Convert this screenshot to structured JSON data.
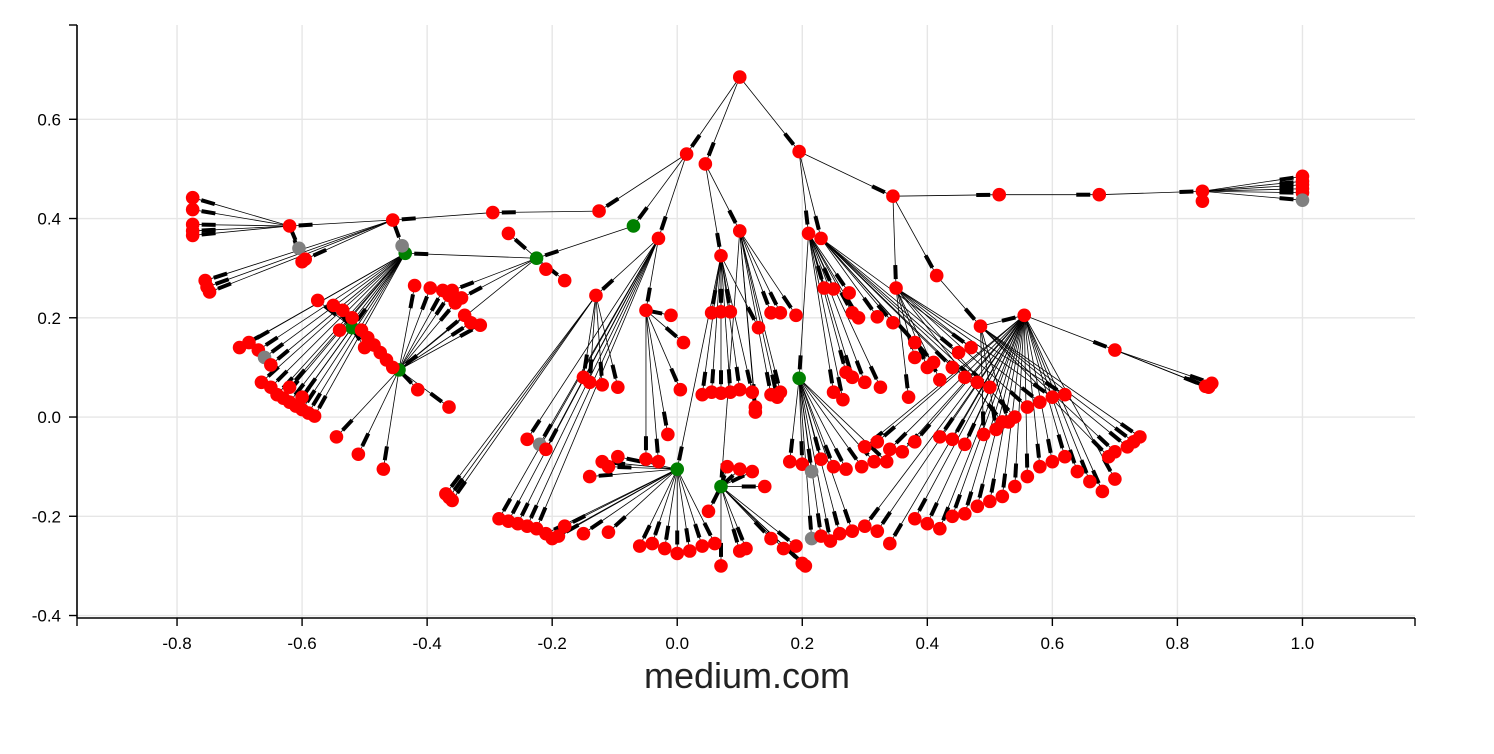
{
  "chart_data": {
    "type": "scatter",
    "subtype": "network-graph",
    "title": "",
    "xlabel": "medium.com",
    "ylabel": "",
    "xlim": [
      -0.96,
      1.18
    ],
    "ylim": [
      -0.405,
      0.79
    ],
    "xticks": [
      -0.8,
      -0.6,
      -0.4,
      -0.2,
      0.0,
      0.2,
      0.4,
      0.6,
      0.8,
      1.0
    ],
    "xtick_labels": [
      "-0.8",
      "-0.6",
      "-0.4",
      "-0.2",
      "0.0",
      "0.2",
      "0.4",
      "0.6",
      "0.8",
      "1.0"
    ],
    "yticks": [
      -0.4,
      -0.2,
      0.0,
      0.2,
      0.4,
      0.6
    ],
    "ytick_labels": [
      "-0.4",
      "-0.2",
      "0.0",
      "0.2",
      "0.4",
      "0.6"
    ],
    "grid": true,
    "node_colors": {
      "red": "#ff0000",
      "green": "#008000",
      "gray": "#808080"
    },
    "hubs": [
      {
        "id": "root",
        "x": 0.1,
        "y": 0.685,
        "color": "red",
        "parent": null
      },
      {
        "id": "h1",
        "x": 0.015,
        "y": 0.53,
        "color": "red",
        "parent": "root"
      },
      {
        "id": "h2",
        "x": 0.045,
        "y": 0.51,
        "color": "red",
        "parent": "root"
      },
      {
        "id": "h3",
        "x": 0.195,
        "y": 0.535,
        "color": "red",
        "parent": "root"
      },
      {
        "id": "h4",
        "x": 0.345,
        "y": 0.445,
        "color": "red",
        "parent": "h3"
      },
      {
        "id": "h5",
        "x": 0.515,
        "y": 0.448,
        "color": "red",
        "parent": "h4"
      },
      {
        "id": "h6",
        "x": 0.675,
        "y": 0.448,
        "color": "red",
        "parent": "h5"
      },
      {
        "id": "h7",
        "x": 0.84,
        "y": 0.455,
        "color": "red",
        "parent": "h6"
      },
      {
        "id": "h8",
        "x": -0.125,
        "y": 0.415,
        "color": "red",
        "parent": "h1"
      },
      {
        "id": "h9",
        "x": -0.295,
        "y": 0.412,
        "color": "red",
        "parent": "h8"
      },
      {
        "id": "h10",
        "x": -0.455,
        "y": 0.397,
        "color": "red",
        "parent": "h9"
      },
      {
        "id": "h11",
        "x": -0.62,
        "y": 0.385,
        "color": "red",
        "parent": "h10"
      },
      {
        "id": "h12",
        "x": -0.07,
        "y": 0.385,
        "color": "green",
        "parent": "h1"
      },
      {
        "id": "h13",
        "x": -0.225,
        "y": 0.32,
        "color": "green",
        "parent": "h12"
      },
      {
        "id": "h14",
        "x": -0.435,
        "y": 0.33,
        "color": "green",
        "parent": "h13"
      },
      {
        "id": "h15",
        "x": -0.52,
        "y": 0.18,
        "color": "green",
        "parent": "h14"
      },
      {
        "id": "h16",
        "x": -0.445,
        "y": 0.095,
        "color": "green",
        "parent": "h13"
      },
      {
        "id": "h17",
        "x": 0.1,
        "y": 0.375,
        "color": "red",
        "parent": "h2"
      },
      {
        "id": "h18",
        "x": 0.07,
        "y": 0.325,
        "color": "red",
        "parent": "h2"
      },
      {
        "id": "h19",
        "x": 0.21,
        "y": 0.37,
        "color": "red",
        "parent": "h3"
      },
      {
        "id": "h20",
        "x": 0.23,
        "y": 0.36,
        "color": "red",
        "parent": "h3"
      },
      {
        "id": "h21",
        "x": 0.415,
        "y": 0.285,
        "color": "red",
        "parent": "h4"
      },
      {
        "id": "h22",
        "x": 0.35,
        "y": 0.26,
        "color": "red",
        "parent": "h4"
      },
      {
        "id": "h23",
        "x": 0.195,
        "y": 0.078,
        "color": "green",
        "parent": "h19"
      },
      {
        "id": "h24",
        "x": 0.0,
        "y": -0.105,
        "color": "green",
        "parent": "h18"
      },
      {
        "id": "h25",
        "x": 0.07,
        "y": -0.14,
        "color": "green",
        "parent": "h17"
      },
      {
        "id": "h26",
        "x": -0.03,
        "y": 0.36,
        "color": "red",
        "parent": "h1"
      },
      {
        "id": "h27",
        "x": -0.13,
        "y": 0.245,
        "color": "red",
        "parent": "h26"
      },
      {
        "id": "h28",
        "x": -0.05,
        "y": 0.215,
        "color": "red",
        "parent": "h26"
      },
      {
        "id": "h29",
        "x": 0.485,
        "y": 0.183,
        "color": "red",
        "parent": "h21"
      },
      {
        "id": "h30",
        "x": 0.555,
        "y": 0.205,
        "color": "red",
        "parent": "h29"
      },
      {
        "id": "h31",
        "x": 0.7,
        "y": 0.135,
        "color": "red",
        "parent": "h30"
      }
    ],
    "leaf_groups": [
      {
        "parent": "h7",
        "leaves": [
          [
            1.0,
            0.485
          ],
          [
            1.0,
            0.475
          ],
          [
            1.0,
            0.468
          ],
          [
            1.0,
            0.46
          ],
          [
            1.0,
            0.452
          ],
          [
            1.0,
            0.437,
            "gray"
          ],
          [
            0.84,
            0.435
          ]
        ]
      },
      {
        "parent": "h11",
        "leaves": [
          [
            -0.775,
            0.442
          ],
          [
            -0.775,
            0.418
          ],
          [
            -0.775,
            0.388
          ],
          [
            -0.775,
            0.375
          ],
          [
            -0.775,
            0.366
          ],
          [
            -0.605,
            0.34,
            "gray"
          ],
          [
            -0.6,
            0.313
          ]
        ]
      },
      {
        "parent": "h10",
        "leaves": [
          [
            -0.755,
            0.275
          ],
          [
            -0.752,
            0.262
          ],
          [
            -0.748,
            0.252
          ],
          [
            -0.44,
            0.345,
            "gray"
          ],
          [
            -0.595,
            0.318
          ]
        ]
      },
      {
        "parent": "h14",
        "leaves": [
          [
            -0.7,
            0.14
          ],
          [
            -0.685,
            0.15
          ],
          [
            -0.67,
            0.135
          ],
          [
            -0.66,
            0.12,
            "gray"
          ],
          [
            -0.65,
            0.105
          ],
          [
            -0.665,
            0.07
          ],
          [
            -0.65,
            0.06
          ],
          [
            -0.64,
            0.045
          ],
          [
            -0.63,
            0.038
          ],
          [
            -0.62,
            0.03
          ],
          [
            -0.61,
            0.022
          ],
          [
            -0.6,
            0.015
          ],
          [
            -0.59,
            0.008
          ],
          [
            -0.58,
            0.002
          ],
          [
            -0.62,
            0.06
          ],
          [
            -0.6,
            0.04
          ]
        ]
      },
      {
        "parent": "h15",
        "leaves": [
          [
            -0.575,
            0.235
          ],
          [
            -0.55,
            0.225
          ],
          [
            -0.535,
            0.215
          ],
          [
            -0.52,
            0.2
          ],
          [
            -0.505,
            0.175
          ],
          [
            -0.495,
            0.16
          ],
          [
            -0.485,
            0.145
          ],
          [
            -0.475,
            0.13
          ],
          [
            -0.465,
            0.115
          ],
          [
            -0.455,
            0.1
          ],
          [
            -0.54,
            0.175
          ],
          [
            -0.5,
            0.14
          ]
        ]
      },
      {
        "parent": "h16",
        "leaves": [
          [
            -0.42,
            0.265
          ],
          [
            -0.395,
            0.26
          ],
          [
            -0.375,
            0.255
          ],
          [
            -0.365,
            0.245
          ],
          [
            -0.355,
            0.23
          ],
          [
            -0.34,
            0.205
          ],
          [
            -0.33,
            0.19
          ],
          [
            -0.315,
            0.185
          ],
          [
            -0.415,
            0.055
          ],
          [
            -0.365,
            0.02
          ],
          [
            -0.545,
            -0.04
          ],
          [
            -0.51,
            -0.075
          ],
          [
            -0.47,
            -0.105
          ]
        ]
      },
      {
        "parent": "h13",
        "leaves": [
          [
            -0.21,
            0.298
          ],
          [
            -0.18,
            0.275
          ],
          [
            -0.27,
            0.37
          ],
          [
            -0.36,
            0.255
          ],
          [
            -0.345,
            0.24
          ]
        ]
      },
      {
        "parent": "h27",
        "leaves": [
          [
            -0.15,
            0.08
          ],
          [
            -0.14,
            0.07
          ],
          [
            -0.12,
            0.065
          ],
          [
            -0.095,
            0.06
          ],
          [
            -0.37,
            -0.155
          ],
          [
            -0.365,
            -0.162
          ],
          [
            -0.36,
            -0.168
          ]
        ]
      },
      {
        "parent": "h28",
        "leaves": [
          [
            -0.01,
            0.205
          ],
          [
            0.01,
            0.15
          ],
          [
            0.005,
            0.055
          ],
          [
            -0.015,
            -0.035
          ],
          [
            -0.03,
            -0.09
          ],
          [
            -0.05,
            -0.085
          ]
        ]
      },
      {
        "parent": "h18",
        "leaves": [
          [
            0.055,
            0.21
          ],
          [
            0.07,
            0.212
          ],
          [
            0.085,
            0.212
          ],
          [
            0.04,
            0.045
          ],
          [
            0.055,
            0.05
          ],
          [
            0.07,
            0.048
          ],
          [
            0.085,
            0.05
          ],
          [
            0.1,
            0.055
          ],
          [
            0.12,
            0.05
          ],
          [
            0.13,
            0.18
          ]
        ]
      },
      {
        "parent": "h17",
        "leaves": [
          [
            0.15,
            0.21
          ],
          [
            0.165,
            0.21
          ],
          [
            0.19,
            0.205
          ],
          [
            0.15,
            0.045
          ],
          [
            0.16,
            0.04
          ],
          [
            0.165,
            0.05
          ],
          [
            0.125,
            0.02
          ],
          [
            0.125,
            0.01
          ]
        ]
      },
      {
        "parent": "h19",
        "leaves": [
          [
            0.235,
            0.26
          ],
          [
            0.25,
            0.258
          ],
          [
            0.275,
            0.25
          ],
          [
            0.28,
            0.21
          ],
          [
            0.29,
            0.2
          ],
          [
            0.27,
            0.09
          ],
          [
            0.28,
            0.08
          ],
          [
            0.3,
            0.07
          ],
          [
            0.325,
            0.06
          ],
          [
            0.25,
            0.05
          ],
          [
            0.265,
            0.035
          ]
        ]
      },
      {
        "parent": "h20",
        "leaves": [
          [
            0.32,
            0.202
          ],
          [
            0.345,
            0.19
          ],
          [
            0.38,
            0.15
          ],
          [
            0.41,
            0.11
          ],
          [
            0.44,
            0.1
          ],
          [
            0.46,
            0.08
          ],
          [
            0.48,
            0.07
          ],
          [
            0.5,
            0.06
          ],
          [
            0.45,
            0.13
          ],
          [
            0.47,
            0.14
          ]
        ]
      },
      {
        "parent": "h22",
        "leaves": [
          [
            0.37,
            0.04
          ],
          [
            0.38,
            0.12
          ],
          [
            0.4,
            0.1
          ],
          [
            0.42,
            0.075
          ],
          [
            0.52,
            -0.01
          ],
          [
            0.54,
            0.0
          ],
          [
            0.56,
            0.02
          ],
          [
            0.58,
            0.03
          ],
          [
            0.6,
            0.04
          ],
          [
            0.62,
            0.045
          ]
        ]
      },
      {
        "parent": "h29",
        "leaves": [
          [
            0.49,
            -0.035
          ],
          [
            0.51,
            -0.025
          ],
          [
            0.53,
            -0.01
          ],
          [
            0.72,
            -0.06
          ],
          [
            0.73,
            -0.05
          ],
          [
            0.74,
            -0.04
          ],
          [
            0.7,
            -0.07
          ],
          [
            0.69,
            -0.08
          ]
        ]
      },
      {
        "parent": "h31",
        "leaves": [
          [
            0.845,
            0.062
          ],
          [
            0.85,
            0.06
          ],
          [
            0.855,
            0.068
          ]
        ]
      },
      {
        "parent": "h23",
        "leaves": [
          [
            0.18,
            -0.09
          ],
          [
            0.2,
            -0.095
          ],
          [
            0.215,
            -0.11,
            "gray"
          ],
          [
            0.23,
            -0.085
          ],
          [
            0.25,
            -0.1
          ],
          [
            0.27,
            -0.105
          ],
          [
            0.295,
            -0.1
          ],
          [
            0.315,
            -0.09
          ],
          [
            0.335,
            -0.09
          ],
          [
            0.215,
            -0.245,
            "gray"
          ],
          [
            0.23,
            -0.24
          ],
          [
            0.245,
            -0.25
          ],
          [
            0.26,
            -0.235
          ],
          [
            0.28,
            -0.23
          ]
        ]
      },
      {
        "parent": "h24",
        "leaves": [
          [
            -0.12,
            -0.09
          ],
          [
            -0.11,
            -0.1
          ],
          [
            -0.095,
            -0.08
          ],
          [
            -0.14,
            -0.12
          ],
          [
            -0.18,
            -0.22
          ],
          [
            -0.19,
            -0.24
          ],
          [
            -0.2,
            -0.245
          ],
          [
            -0.21,
            -0.235
          ],
          [
            -0.15,
            -0.235
          ],
          [
            -0.11,
            -0.232
          ],
          [
            -0.06,
            -0.26
          ],
          [
            -0.04,
            -0.255
          ],
          [
            -0.02,
            -0.265
          ],
          [
            0.0,
            -0.275
          ],
          [
            0.02,
            -0.27
          ],
          [
            0.04,
            -0.26
          ],
          [
            0.06,
            -0.255
          ]
        ]
      },
      {
        "parent": "h25",
        "leaves": [
          [
            0.08,
            -0.1
          ],
          [
            0.1,
            -0.105
          ],
          [
            0.12,
            -0.11
          ],
          [
            0.14,
            -0.14
          ],
          [
            0.05,
            -0.19
          ],
          [
            0.07,
            -0.3
          ],
          [
            0.1,
            -0.27
          ],
          [
            0.11,
            -0.265
          ],
          [
            0.15,
            -0.245
          ],
          [
            0.17,
            -0.265
          ],
          [
            0.19,
            -0.26
          ],
          [
            0.2,
            -0.295
          ],
          [
            0.205,
            -0.3
          ]
        ]
      },
      {
        "parent": "h26",
        "leaves": [
          [
            -0.22,
            -0.055,
            "gray"
          ],
          [
            -0.21,
            -0.065
          ],
          [
            -0.24,
            -0.045
          ],
          [
            -0.285,
            -0.205
          ],
          [
            -0.27,
            -0.21
          ],
          [
            -0.255,
            -0.215
          ],
          [
            -0.24,
            -0.22
          ],
          [
            -0.225,
            -0.225
          ]
        ]
      },
      {
        "parent": "h30",
        "leaves": [
          [
            0.3,
            -0.06
          ],
          [
            0.32,
            -0.05
          ],
          [
            0.34,
            -0.065
          ],
          [
            0.36,
            -0.07
          ],
          [
            0.38,
            -0.05
          ],
          [
            0.42,
            -0.04
          ],
          [
            0.44,
            -0.045
          ],
          [
            0.46,
            -0.055
          ],
          [
            0.3,
            -0.22
          ],
          [
            0.32,
            -0.23
          ],
          [
            0.34,
            -0.255
          ],
          [
            0.38,
            -0.205
          ],
          [
            0.4,
            -0.215
          ],
          [
            0.42,
            -0.225
          ],
          [
            0.44,
            -0.2
          ],
          [
            0.46,
            -0.195
          ],
          [
            0.48,
            -0.18
          ],
          [
            0.5,
            -0.17
          ],
          [
            0.52,
            -0.16
          ],
          [
            0.54,
            -0.14
          ],
          [
            0.56,
            -0.12
          ],
          [
            0.58,
            -0.1
          ],
          [
            0.6,
            -0.09
          ],
          [
            0.62,
            -0.08
          ],
          [
            0.64,
            -0.11
          ],
          [
            0.66,
            -0.13
          ],
          [
            0.68,
            -0.15
          ],
          [
            0.7,
            -0.125
          ]
        ]
      }
    ]
  }
}
